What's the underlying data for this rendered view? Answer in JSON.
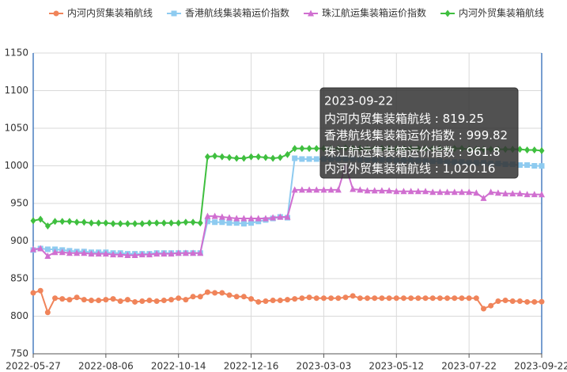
{
  "chart_data": {
    "type": "line",
    "categories": [
      "2022-05-27",
      null,
      null,
      null,
      null,
      null,
      null,
      null,
      null,
      null,
      "2022-08-06",
      null,
      null,
      null,
      null,
      null,
      null,
      null,
      null,
      null,
      "2022-10-14",
      null,
      null,
      null,
      null,
      null,
      null,
      null,
      null,
      null,
      "2022-12-16",
      null,
      null,
      null,
      null,
      null,
      null,
      null,
      null,
      null,
      "2023-03-03",
      null,
      null,
      null,
      null,
      null,
      null,
      null,
      null,
      null,
      "2023-05-12",
      null,
      null,
      null,
      null,
      null,
      null,
      null,
      null,
      null,
      "2023-07-22",
      null,
      null,
      null,
      null,
      null,
      null,
      null,
      null,
      null,
      "2023-09-22"
    ],
    "series": [
      {
        "name": "内河内贸集装箱航线",
        "color": "#f0845a",
        "marker": "circle",
        "values": [
          831,
          834,
          805,
          824,
          823,
          822,
          825,
          822,
          821,
          821,
          822,
          823,
          820,
          822,
          819,
          820,
          821,
          820,
          821,
          822,
          824,
          822,
          826,
          826,
          832,
          831,
          831,
          828,
          826,
          826,
          823,
          819,
          820,
          821,
          821,
          822,
          823,
          824,
          825,
          824,
          824,
          824,
          824,
          825,
          827,
          824,
          824,
          824,
          824,
          824,
          824,
          824,
          824,
          824,
          824,
          824,
          824,
          824,
          824,
          824,
          824,
          824,
          810,
          814,
          820,
          821,
          820,
          820,
          819,
          819,
          819.25
        ]
      },
      {
        "name": "香港航线集装箱运价指数",
        "color": "#8ecbf0",
        "marker": "square",
        "values": [
          888,
          890,
          889,
          889,
          888,
          887,
          886,
          886,
          885,
          885,
          885,
          884,
          884,
          883,
          883,
          883,
          883,
          884,
          884,
          884,
          884,
          884,
          884,
          884,
          926,
          925,
          925,
          924,
          924,
          923,
          924,
          926,
          928,
          930,
          932,
          931,
          1010,
          1009,
          1009,
          1009,
          1009,
          1009,
          1009,
          1009,
          1009,
          1008,
          1008,
          1008,
          1008,
          1008,
          1007,
          1007,
          1007,
          1007,
          1006,
          1006,
          1006,
          1005,
          1005,
          1005,
          1004,
          1004,
          1004,
          1003,
          1003,
          1002,
          1002,
          1001,
          1001,
          1000,
          999.82
        ]
      },
      {
        "name": "珠江航运集装箱运价指数",
        "color": "#d06fd0",
        "marker": "triangle",
        "values": [
          889,
          890,
          880,
          885,
          885,
          884,
          884,
          884,
          883,
          883,
          883,
          882,
          882,
          881,
          881,
          882,
          882,
          883,
          883,
          883,
          884,
          884,
          884,
          884,
          933,
          933,
          932,
          931,
          930,
          930,
          930,
          930,
          930,
          931,
          932,
          932,
          968,
          968,
          968,
          968,
          968,
          968,
          968,
          1000,
          969,
          968,
          967,
          967,
          967,
          967,
          966,
          966,
          966,
          966,
          966,
          965,
          965,
          965,
          965,
          965,
          965,
          964,
          957,
          965,
          964,
          963,
          963,
          963,
          962,
          962,
          961.8
        ]
      },
      {
        "name": "内河外贸集装箱航线",
        "color": "#3fbf3f",
        "marker": "diamond",
        "values": [
          927,
          929,
          920,
          926,
          926,
          926,
          925,
          925,
          924,
          924,
          924,
          923,
          923,
          923,
          923,
          923,
          924,
          924,
          924,
          924,
          924,
          925,
          925,
          924,
          1012,
          1013,
          1012,
          1011,
          1010,
          1010,
          1012,
          1012,
          1011,
          1010,
          1011,
          1015,
          1023,
          1023,
          1023,
          1023,
          1023,
          1023,
          1023,
          1024,
          1023,
          1023,
          1023,
          1023,
          1023,
          1023,
          1023,
          1023,
          1023,
          1023,
          1023,
          1023,
          1023,
          1023,
          1023,
          1023,
          1022,
          1022,
          1022,
          1022,
          1022,
          1022,
          1022,
          1022,
          1021,
          1021,
          1020.16
        ],
        "value_labels": [
          null,
          null,
          null,
          null,
          null,
          null,
          null,
          null,
          null,
          null,
          null,
          null,
          null,
          null,
          null,
          null,
          null,
          null,
          null,
          null,
          null,
          null,
          null,
          null,
          null,
          null,
          null,
          null,
          null,
          null,
          null,
          null,
          null,
          null,
          null,
          null,
          null,
          null,
          null,
          null,
          null,
          null,
          null,
          null,
          null,
          null,
          null,
          null,
          null,
          null,
          null,
          null,
          null,
          null,
          null,
          null,
          null,
          null,
          null,
          null,
          null,
          null,
          null,
          null,
          null,
          null,
          null,
          null,
          null,
          null,
          "1,020.16"
        ]
      }
    ],
    "ylim": [
      750,
      1150
    ],
    "yticks": [
      750,
      800,
      850,
      900,
      950,
      1000,
      1050,
      1100,
      1150
    ],
    "grid": true,
    "legend": "top"
  }
}
